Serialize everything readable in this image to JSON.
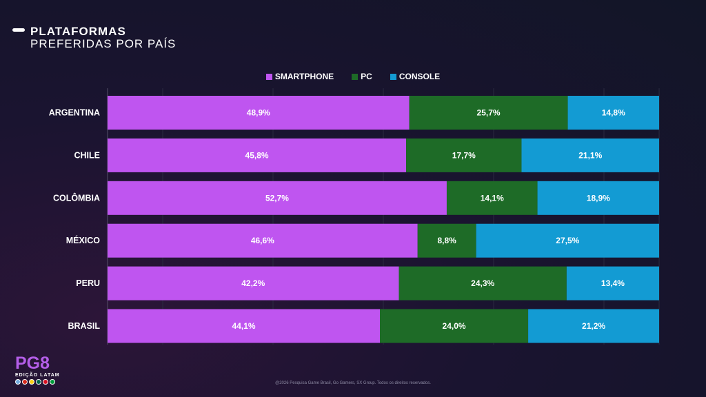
{
  "header": {
    "title": "PLATAFORMAS",
    "subtitle": "PREFERIDAS POR PAÍS"
  },
  "colors": {
    "smartphone": "#bf55f0",
    "pc": "#1e6b27",
    "console": "#139bd3"
  },
  "chart_data": {
    "type": "bar",
    "orientation": "horizontal",
    "stacked": true,
    "categories": [
      "ARGENTINA",
      "CHILE",
      "COLÔMBIA",
      "MÉXICO",
      "PERU",
      "BRASIL"
    ],
    "series": [
      {
        "name": "SMARTPHONE",
        "color": "#bf55f0",
        "values": [
          48.9,
          45.8,
          52.7,
          46.6,
          42.2,
          44.1
        ],
        "labels": [
          "48,9%",
          "45,8%",
          "52,7%",
          "46,6%",
          "42,2%",
          "44,1%"
        ]
      },
      {
        "name": "PC",
        "color": "#1e6b27",
        "values": [
          25.7,
          17.7,
          14.1,
          8.8,
          24.3,
          24.0
        ],
        "labels": [
          "25,7%",
          "17,7%",
          "14,1%",
          "8,8%",
          "24,3%",
          "24,0%"
        ]
      },
      {
        "name": "CONSOLE",
        "color": "#139bd3",
        "values": [
          14.8,
          21.1,
          18.9,
          27.5,
          13.4,
          21.2
        ],
        "labels": [
          "14,8%",
          "21,1%",
          "18,9%",
          "27,5%",
          "13,4%",
          "21,2%"
        ]
      }
    ],
    "legend_position": "top-center",
    "grid": true
  },
  "logo": {
    "name": "PG8",
    "edition": "EDIÇÃO LATAM"
  },
  "footer": {
    "copyright": "@2026 Pesquisa Game Brasil, Go Gamers, SX Group. Todos os direitos reservados."
  }
}
